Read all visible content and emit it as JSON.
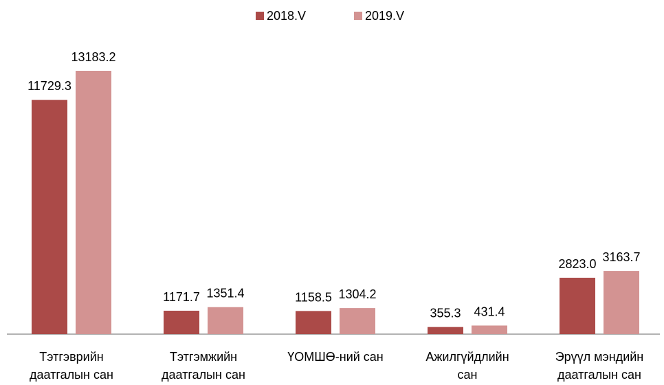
{
  "chart_data": {
    "type": "bar",
    "categories": [
      "Тэтгэврийн\nдаатгалын сан",
      "Тэтгэмжийн\nдаатгалын сан",
      "ҮОМШӨ-ний сан",
      "Ажилгүйдлийн\nсан",
      "Эрүүл мэндийн\nдаатгалын сан"
    ],
    "series": [
      {
        "name": "2018.V",
        "color": "#ab4a48",
        "values": [
          11729.3,
          1171.7,
          1158.5,
          355.3,
          2823.0
        ],
        "value_labels": [
          "11729.3",
          "1171.7",
          "1158.5",
          "355.3",
          "2823.0"
        ]
      },
      {
        "name": "2019.V",
        "color": "#d39392",
        "values": [
          13183.2,
          1351.4,
          1304.2,
          431.4,
          3163.7
        ],
        "value_labels": [
          "13183.2",
          "1351.4",
          "1304.2",
          "431.4",
          "3163.7"
        ]
      }
    ],
    "legend": "top"
  }
}
